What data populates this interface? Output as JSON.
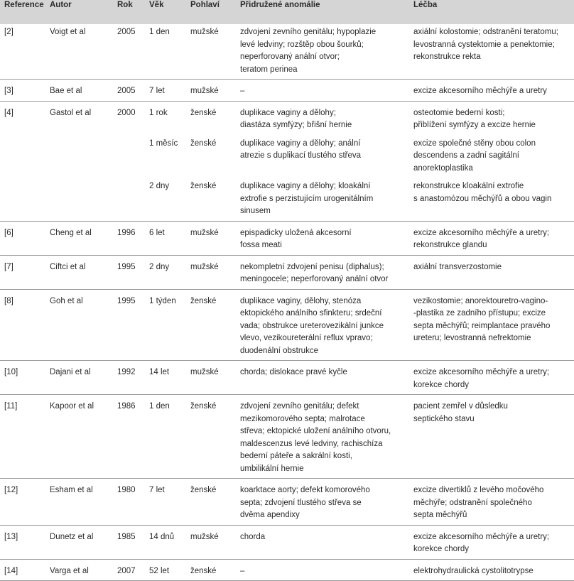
{
  "headers": {
    "reference": "Reference",
    "autor": "Autor",
    "rok": "Rok",
    "vek": "Věk",
    "pohlavi": "Pohlaví",
    "anomalie": "Přidružené anomálie",
    "lecba": "Léčba"
  },
  "rows": [
    {
      "reference": "[2]",
      "autor": "Voigt et al",
      "rok": "2005",
      "vek": "1 den",
      "pohlavi": "mužské",
      "anomalie": "zdvojení zevního genitálu; hypoplazie\nlevé ledviny; rozštěp obou šourků;\nneperforovaný anální otvor;\nteratom perinea",
      "lecba": "axiální kolostomie; odstranění teratomu;\nlevostranná cystektomie a penektomie;\nrekonstrukce rekta"
    },
    {
      "reference": "[3]",
      "autor": "Bae et al",
      "rok": "2005",
      "vek": "7 let",
      "pohlavi": "mužské",
      "anomalie": "–",
      "lecba": "excize akcesorního měchýře a uretry"
    },
    {
      "reference": "[4]",
      "autor": "Gastol et al",
      "rok": "2000",
      "vek": "1 rok",
      "pohlavi": "ženské",
      "anomalie": "duplikace vaginy a dělohy;\ndiastáza symfýzy; břišní hernie",
      "lecba": "osteotomie bederní kosti;\npřiblížení symfýzy a excize hernie"
    },
    {
      "reference": "",
      "autor": "",
      "rok": "",
      "vek": "1 měsíc",
      "pohlavi": "ženské",
      "anomalie": "duplikace vaginy a dělohy; anální\natrezie s duplikací tlustého střeva",
      "lecba": "excize společné stěny obou colon\ndescendens a zadní sagitální\nanorektoplastika"
    },
    {
      "reference": "",
      "autor": "",
      "rok": "",
      "vek": "2 dny",
      "pohlavi": "ženské",
      "anomalie": "duplikace vaginy a dělohy; kloakální\nextrofie s perzistujícím urogenitálním\nsinusem",
      "lecba": "rekonstrukce kloakální extrofie\ns anastomózou měchýřů a obou vagin"
    },
    {
      "reference": "[6]",
      "autor": "Cheng et al",
      "rok": "1996",
      "vek": "6 let",
      "pohlavi": "mužské",
      "anomalie": "epispadicky uložená akcesorní\nfossa meati",
      "lecba": "excize akcesorního měchýře a uretry;\nrekonstrukce glandu"
    },
    {
      "reference": "[7]",
      "autor": "Ciftci et al",
      "rok": "1995",
      "vek": "2 dny",
      "pohlavi": "mužské",
      "anomalie": "nekompletní zdvojení penisu (diphalus);\nmeningocele; neperforovaný anální otvor",
      "lecba": "axiální transverzostomie"
    },
    {
      "reference": "[8]",
      "autor": "Goh et al",
      "rok": "1995",
      "vek": "1 týden",
      "pohlavi": "ženské",
      "anomalie": "duplikace vaginy, dělohy, stenóza\nektopického análního sfinkteru; srdeční\nvada; obstrukce ureterovezikální junkce\nvlevo, vezikoureterální reflux vpravo;\nduodenální obstrukce",
      "lecba": "vezikostomie; anorektouretro-vagino-\n-plastika ze zadního přístupu; excize\nsepta měchýřů; reimplantace pravého\nureteru; levostranná nefrektomie"
    },
    {
      "reference": "[10]",
      "autor": "Dajani et al",
      "rok": "1992",
      "vek": "14 let",
      "pohlavi": "mužské",
      "anomalie": "chorda; dislokace pravé kyčle",
      "lecba": "excize akcesorního měchýře a uretry;\nkorekce chordy"
    },
    {
      "reference": "[11]",
      "autor": "Kapoor et al",
      "rok": "1986",
      "vek": "1 den",
      "pohlavi": "ženské",
      "anomalie": "zdvojení zevního genitálu; defekt\nmezikomorového septa; malrotace\nstřeva; ektopické uložení análního otvoru,\nmaldescenzus levé ledviny, rachischíza\nbederní páteře a sakrální kosti,\numbilikální hernie",
      "lecba": "pacient zemřel v důsledku\nseptického stavu"
    },
    {
      "reference": "[12]",
      "autor": "Esham et al",
      "rok": "1980",
      "vek": "7 let",
      "pohlavi": "ženské",
      "anomalie": "koarktace aorty; defekt komorového\nsepta; zdvojení tlustého střeva se\ndvěma apendixy",
      "lecba": "excize divertiklů z levého močového\nměchýře; odstranění společného\nsepta měchýřů"
    },
    {
      "reference": "[13]",
      "autor": "Dunetz et al",
      "rok": "1985",
      "vek": "14 dnů",
      "pohlavi": "mužské",
      "anomalie": "chorda",
      "lecba": "excize akcesorního měchýře a uretry;\nkorekce chordy"
    },
    {
      "reference": "[14]",
      "autor": "Varga et al",
      "rok": "2007",
      "vek": "52 let",
      "pohlavi": "ženské",
      "anomalie": "–",
      "lecba": "elektrohydraulická cystolitotrypse"
    }
  ]
}
